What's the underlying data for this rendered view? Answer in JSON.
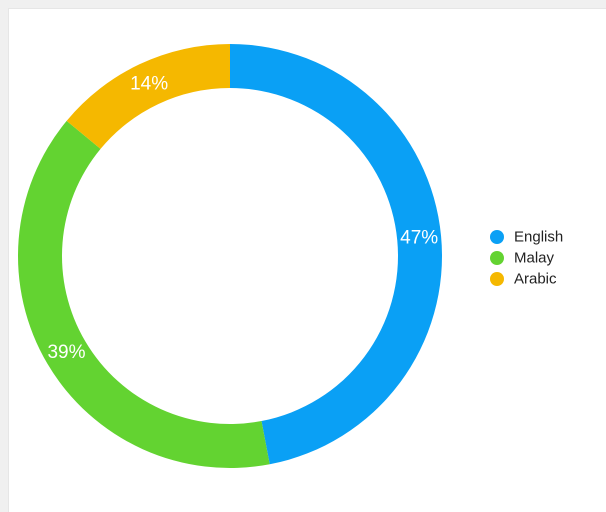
{
  "chart_data": {
    "type": "pie",
    "variant": "donut",
    "title": "",
    "categories": [
      "English",
      "Malay",
      "Arabic"
    ],
    "values": [
      47,
      39,
      14
    ],
    "labels": [
      "47%",
      "39%",
      "14%"
    ],
    "colors": [
      "#0aa0f5",
      "#63d331",
      "#f5b800"
    ],
    "legend": {
      "position": "right",
      "entries": [
        "English",
        "Malay",
        "Arabic"
      ]
    },
    "start_angle_deg": 0,
    "direction": "clockwise"
  }
}
